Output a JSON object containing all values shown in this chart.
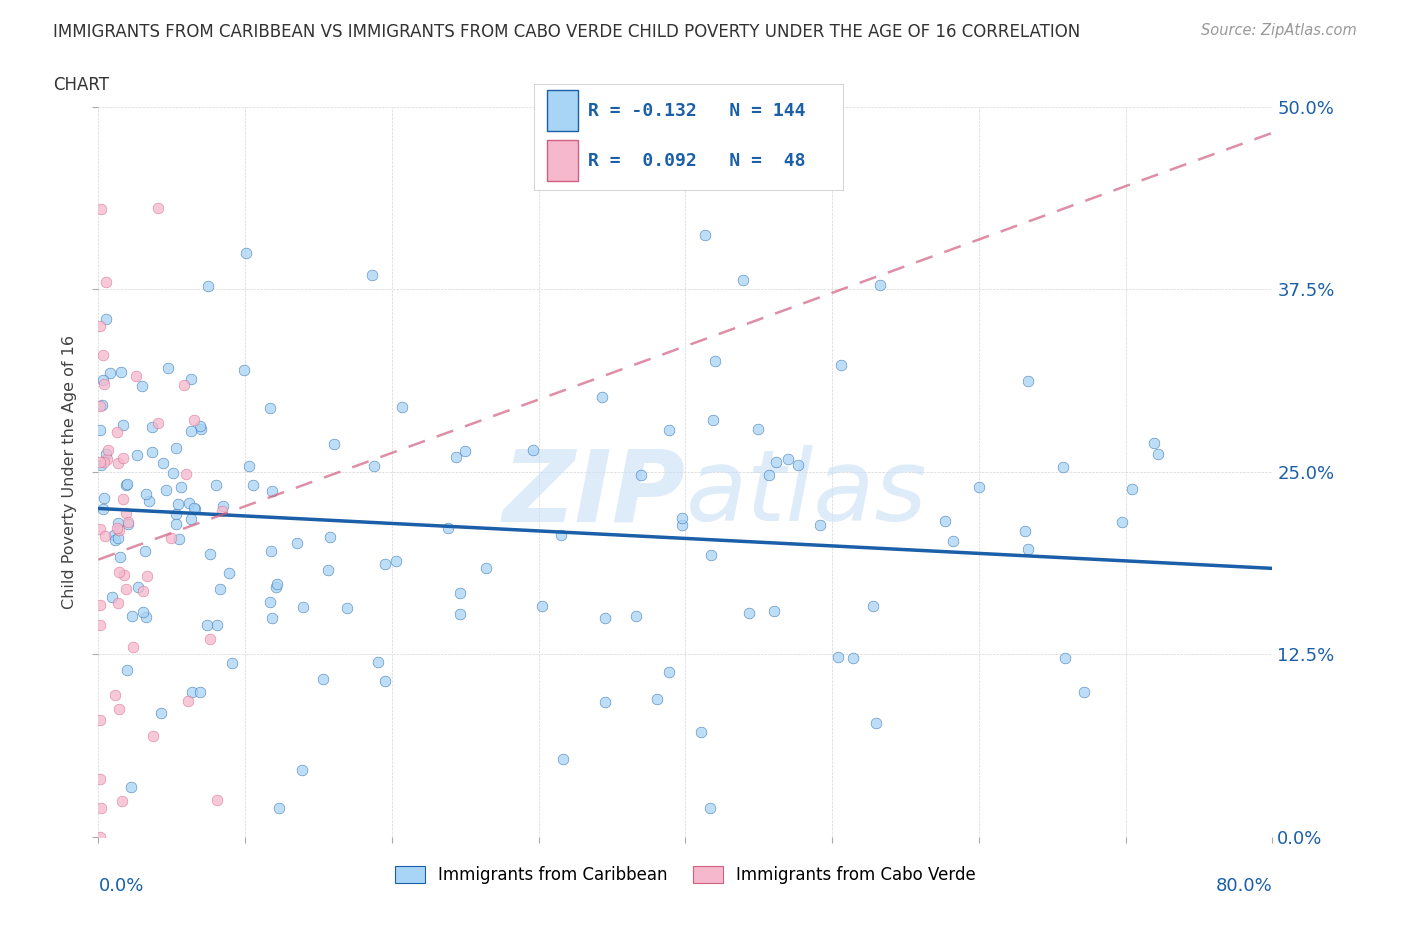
{
  "title_line1": "IMMIGRANTS FROM CARIBBEAN VS IMMIGRANTS FROM CABO VERDE CHILD POVERTY UNDER THE AGE OF 16 CORRELATION",
  "title_line2": "CHART",
  "source": "Source: ZipAtlas.com",
  "ylabel": "Child Poverty Under the Age of 16",
  "legend_bottom": [
    "Immigrants from Caribbean",
    "Immigrants from Cabo Verde"
  ],
  "r_caribbean": -0.132,
  "n_caribbean": 144,
  "r_caboverde": 0.092,
  "n_caboverde": 48,
  "color_caribbean": "#a8d4f5",
  "color_caboverde": "#f5b8cc",
  "trendline_caribbean": "#1a5fa8",
  "trendline_caboverde": "#d06080",
  "background_color": "#ffffff",
  "xlim": [
    0.0,
    0.8
  ],
  "ylim": [
    0.0,
    0.5
  ],
  "car_trend_x0": 0.0,
  "car_trend_y0": 0.225,
  "car_trend_x1": 0.78,
  "car_trend_y1": 0.185,
  "cv_trend_x0": 0.0,
  "cv_trend_y0": 0.19,
  "cv_trend_x1": 0.78,
  "cv_trend_y1": 0.475,
  "watermark_text": "ZIPatlas",
  "watermark_color": "#c8dff5",
  "watermark_alpha": 0.6
}
